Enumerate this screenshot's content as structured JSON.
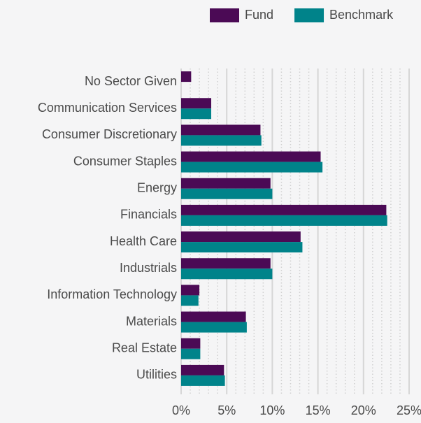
{
  "chart_data": {
    "type": "bar",
    "orientation": "horizontal",
    "categories": [
      "No Sector Given",
      "Communication Services",
      "Consumer Discretionary",
      "Consumer Staples",
      "Energy",
      "Financials",
      "Health Care",
      "Industrials",
      "Information Technology",
      "Materials",
      "Real Estate",
      "Utilities"
    ],
    "series": [
      {
        "name": "Fund",
        "color": "#4b0a55",
        "values": [
          1.1,
          3.3,
          8.7,
          15.3,
          9.8,
          22.5,
          13.1,
          9.8,
          2.0,
          7.1,
          2.1,
          4.7
        ]
      },
      {
        "name": "Benchmark",
        "color": "#00838a",
        "values": [
          0,
          3.3,
          8.8,
          15.5,
          10.0,
          22.6,
          13.3,
          10.0,
          1.9,
          7.2,
          2.1,
          4.8
        ]
      }
    ],
    "xlim": [
      0,
      25
    ],
    "xticks": [
      {
        "value": 0,
        "label": "0%"
      },
      {
        "value": 5,
        "label": "5%"
      },
      {
        "value": 10,
        "label": "10%"
      },
      {
        "value": 15,
        "label": "15%"
      },
      {
        "value": 20,
        "label": "20%"
      },
      {
        "value": 25,
        "label": "25%"
      }
    ],
    "xminor": [
      1,
      2,
      3,
      4,
      6,
      7,
      8,
      9,
      11,
      12,
      13,
      14,
      16,
      17,
      18,
      19,
      21,
      22,
      23,
      24
    ],
    "grid": true,
    "legend": "top-right"
  }
}
